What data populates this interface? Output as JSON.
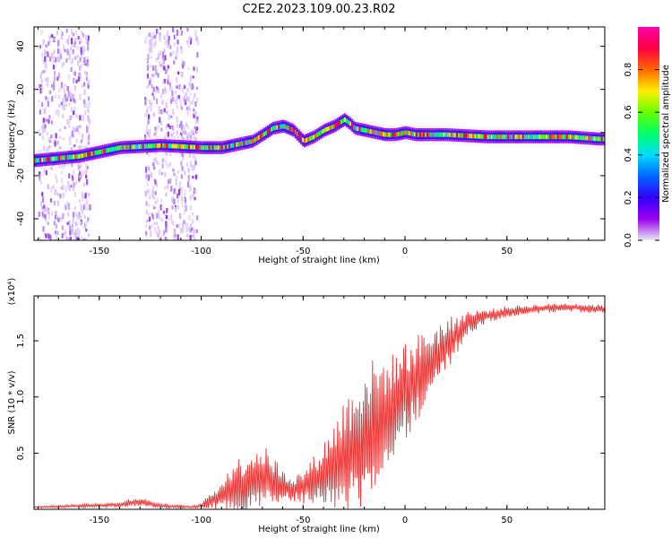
{
  "title": "C2E2.2023.109.00.23.R02",
  "chart_data": [
    {
      "type": "heatmap",
      "name": "spectrogram",
      "xlabel": "Height of straight line (km)",
      "ylabel": "Frequency (Hz)",
      "xlim": [
        -182,
        98
      ],
      "ylim": [
        -50,
        49
      ],
      "xticks": [
        -150,
        -100,
        -50,
        0,
        50
      ],
      "yticks": [
        -40,
        -20,
        0,
        20,
        40
      ],
      "ridge": {
        "description": "ridge of maximum spectral amplitude (Hz vs km)",
        "x": [
          -182,
          -160,
          -140,
          -120,
          -100,
          -90,
          -80,
          -75,
          -70,
          -65,
          -60,
          -55,
          -50,
          -45,
          -40,
          -35,
          -30,
          -27,
          -25,
          -20,
          -15,
          -10,
          -5,
          0,
          5,
          10,
          20,
          40,
          60,
          80,
          95
        ],
        "y": [
          -13,
          -11,
          -7,
          -6,
          -7,
          -7,
          -5,
          -4,
          -1,
          2,
          3,
          1,
          -4,
          -2,
          1,
          3,
          6,
          4,
          2,
          1,
          0,
          -1,
          -1,
          0,
          -1,
          -1,
          -1,
          -2,
          -2,
          -2,
          -3
        ]
      },
      "noise_bands_x": [
        [
          -180,
          -155
        ],
        [
          -128,
          -102
        ]
      ]
    },
    {
      "type": "colorbar",
      "name": "colorbar",
      "label": "Normalized spectral amplitude",
      "range": [
        0.0,
        1.0
      ],
      "ticks": [
        "0.0",
        "0.2",
        "0.4",
        "0.6",
        "0.8"
      ],
      "tick_values": [
        0.0,
        0.2,
        0.4,
        0.6,
        0.8
      ],
      "colors": [
        "#e8e8f0",
        "#9900ee",
        "#3300ff",
        "#0066ff",
        "#00ddff",
        "#00ff66",
        "#66ff00",
        "#ffee00",
        "#ff6600",
        "#ff0044",
        "#ff00aa"
      ]
    },
    {
      "type": "line",
      "name": "snr",
      "xlabel": "Height of straight line (km)",
      "ylabel": "SNR (10 * v/v)",
      "exponent_label": "(x10⁴)",
      "xlim": [
        -182,
        98
      ],
      "ylim": [
        0,
        1.9
      ],
      "xticks": [
        -150,
        -100,
        -50,
        0,
        50
      ],
      "yticks": [
        0.5,
        1.0,
        1.5
      ],
      "ytick_labels": [
        "0.5",
        "1.0",
        "1.5"
      ],
      "color": "#ee3333",
      "envelope": {
        "x": [
          -182,
          -140,
          -135,
          -130,
          -125,
          -120,
          -105,
          -100,
          -95,
          -90,
          -85,
          -80,
          -75,
          -70,
          -65,
          -60,
          -55,
          -50,
          -45,
          -40,
          -35,
          -30,
          -25,
          -20,
          -15,
          -10,
          -5,
          0,
          5,
          10,
          15,
          20,
          25,
          30,
          40,
          50,
          60,
          70,
          80,
          90,
          98
        ],
        "mid": [
          0.02,
          0.04,
          0.06,
          0.07,
          0.05,
          0.03,
          0.02,
          0.03,
          0.08,
          0.12,
          0.18,
          0.2,
          0.25,
          0.28,
          0.25,
          0.2,
          0.18,
          0.2,
          0.25,
          0.3,
          0.38,
          0.45,
          0.55,
          0.65,
          0.75,
          0.85,
          0.95,
          1.05,
          1.15,
          1.25,
          1.35,
          1.45,
          1.55,
          1.65,
          1.72,
          1.76,
          1.78,
          1.79,
          1.8,
          1.79,
          1.78
        ],
        "amp": [
          0.01,
          0.02,
          0.04,
          0.04,
          0.03,
          0.02,
          0.01,
          0.02,
          0.08,
          0.14,
          0.25,
          0.28,
          0.3,
          0.3,
          0.25,
          0.15,
          0.12,
          0.15,
          0.22,
          0.3,
          0.4,
          0.55,
          0.6,
          0.65,
          0.6,
          0.5,
          0.45,
          0.45,
          0.4,
          0.35,
          0.3,
          0.25,
          0.18,
          0.12,
          0.06,
          0.05,
          0.04,
          0.04,
          0.04,
          0.04,
          0.04
        ]
      }
    }
  ]
}
